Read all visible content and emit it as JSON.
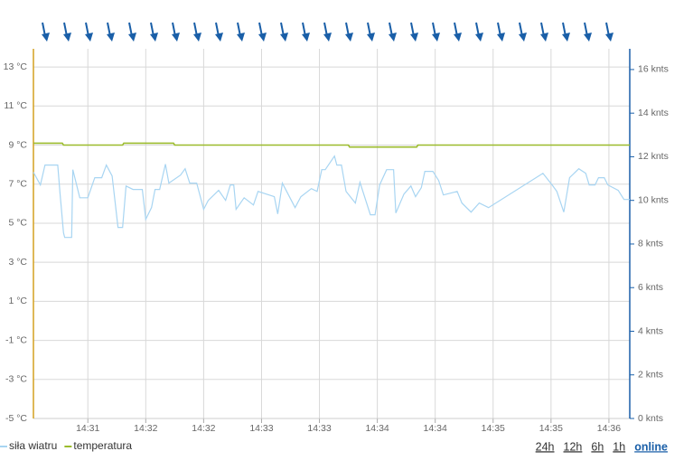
{
  "chart_data": {
    "type": "line",
    "xlim": [
      31.03,
      36.18
    ],
    "xticks": [
      {
        "value": 31.5,
        "label": "14:31"
      },
      {
        "value": 32,
        "label": "14:32"
      },
      {
        "value": 32.5,
        "label": "14:32"
      },
      {
        "value": 33,
        "label": "14:33"
      },
      {
        "value": 33.5,
        "label": "14:33"
      },
      {
        "value": 34,
        "label": "14:34"
      },
      {
        "value": 34.5,
        "label": "14:34"
      },
      {
        "value": 35,
        "label": "14:35"
      },
      {
        "value": 35.5,
        "label": "14:35"
      },
      {
        "value": 36,
        "label": "14:36"
      }
    ],
    "ylim": [
      -5,
      13.93
    ],
    "yticks": [
      {
        "value": -5,
        "label": "-5 °C"
      },
      {
        "value": -3,
        "label": "-3 °C"
      },
      {
        "value": -1,
        "label": "-1 °C"
      },
      {
        "value": 1,
        "label": "1 °C"
      },
      {
        "value": 3,
        "label": "3 °C"
      },
      {
        "value": 5,
        "label": "5 °C"
      },
      {
        "value": 7,
        "label": "7 °C"
      },
      {
        "value": 9,
        "label": "9 °C"
      },
      {
        "value": 11,
        "label": "11 °C"
      },
      {
        "value": 13,
        "label": "13 °C"
      }
    ],
    "y2lim": [
      0,
      16.95
    ],
    "y2ticks": [
      {
        "value": 0,
        "label": "0 knts"
      },
      {
        "value": 2,
        "label": "2 knts"
      },
      {
        "value": 4,
        "label": "4 knts"
      },
      {
        "value": 6,
        "label": "6 knts"
      },
      {
        "value": 8,
        "label": "8 knts"
      },
      {
        "value": 10,
        "label": "10 knts"
      },
      {
        "value": 12,
        "label": "12 knts"
      },
      {
        "value": 14,
        "label": "14 knts"
      },
      {
        "value": 16,
        "label": "16 knts"
      }
    ],
    "grid": true,
    "left_axis_color": "#d4a020",
    "right_axis_color": "#1a5fa8",
    "series": [
      {
        "name": "siła wiatru",
        "color": "#a8d5f2",
        "axis": "y2",
        "x": [
          31.03,
          31.09,
          31.13,
          31.24,
          31.26,
          31.29,
          31.3,
          31.36,
          31.37,
          31.43,
          31.5,
          31.56,
          31.62,
          31.66,
          31.71,
          31.76,
          31.8,
          31.83,
          31.89,
          31.97,
          32.0,
          32.05,
          32.08,
          32.12,
          32.17,
          32.2,
          32.3,
          32.34,
          32.38,
          32.44,
          32.5,
          32.54,
          32.63,
          32.69,
          32.73,
          32.76,
          32.78,
          32.85,
          32.93,
          32.97,
          33.11,
          33.14,
          33.18,
          33.29,
          33.34,
          33.43,
          33.48,
          33.52,
          33.55,
          33.63,
          33.65,
          33.69,
          33.73,
          33.81,
          33.85,
          33.94,
          33.98,
          34.02,
          34.08,
          34.14,
          34.16,
          34.23,
          34.29,
          34.33,
          34.38,
          34.41,
          34.48,
          34.53,
          34.57,
          34.69,
          34.73,
          34.81,
          34.88,
          34.96,
          35.43,
          35.51,
          35.55,
          35.61,
          35.66,
          35.74,
          35.8,
          35.83,
          35.88,
          35.91,
          35.96,
          35.99,
          36.08,
          36.13,
          36.18
        ],
        "values": [
          11.29,
          10.71,
          11.62,
          11.62,
          10.29,
          8.51,
          8.3,
          8.3,
          11.41,
          10.12,
          10.12,
          11.04,
          11.04,
          11.62,
          11.12,
          8.76,
          8.76,
          10.66,
          10.5,
          10.5,
          9.13,
          9.67,
          10.5,
          10.5,
          11.66,
          10.79,
          11.16,
          11.45,
          10.79,
          10.79,
          9.59,
          10.0,
          10.46,
          10.0,
          10.71,
          10.71,
          9.59,
          10.12,
          9.79,
          10.41,
          10.17,
          9.38,
          10.79,
          9.67,
          10.17,
          10.54,
          10.41,
          11.41,
          11.41,
          12.03,
          11.62,
          11.62,
          10.41,
          9.88,
          10.83,
          9.34,
          9.34,
          10.71,
          11.41,
          11.41,
          9.42,
          10.29,
          10.66,
          10.17,
          10.58,
          11.33,
          11.33,
          10.91,
          10.25,
          10.41,
          9.88,
          9.46,
          9.88,
          9.67,
          11.24,
          10.71,
          10.41,
          9.46,
          11.04,
          11.45,
          11.24,
          10.71,
          10.71,
          11.04,
          11.04,
          10.71,
          10.46,
          10.04,
          10.04
        ]
      },
      {
        "name": "temperatura",
        "color": "#9bbb2c",
        "axis": "y",
        "x": [
          31.03,
          31.28,
          31.29,
          31.8,
          31.81,
          32.24,
          32.25,
          33.75,
          33.76,
          34.34,
          34.35,
          36.18
        ],
        "values": [
          9.1,
          9.1,
          9.0,
          9.0,
          9.1,
          9.1,
          9.0,
          9.0,
          8.9,
          8.9,
          9.0,
          9.0
        ]
      }
    ]
  },
  "controls": [
    "24h",
    "12h",
    "6h",
    "1h",
    "online"
  ]
}
